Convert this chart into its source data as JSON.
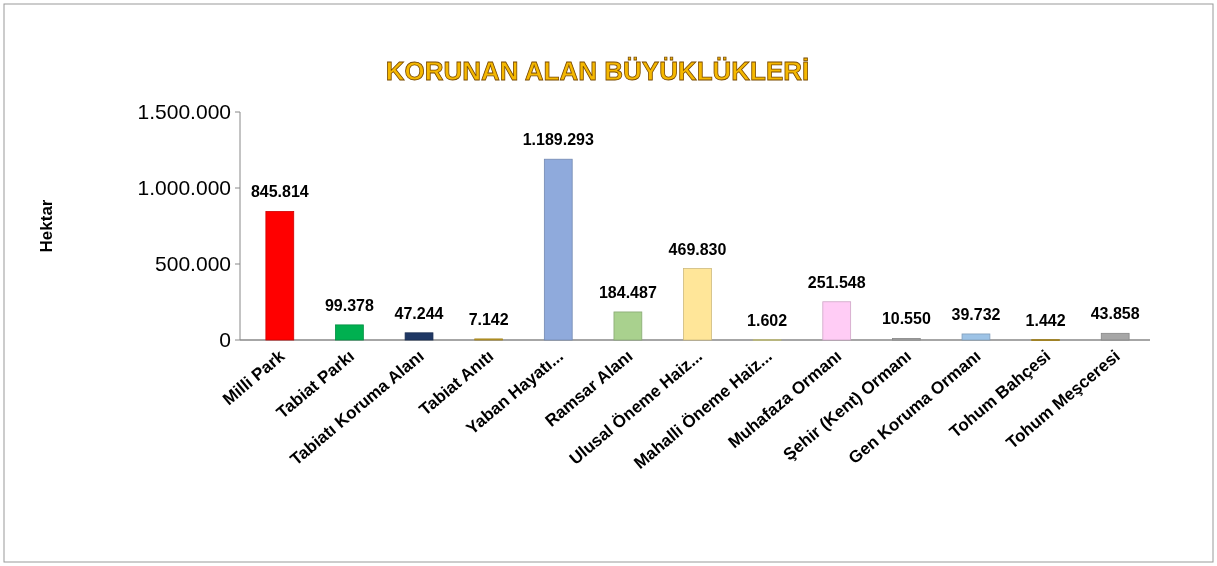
{
  "chart_data": {
    "type": "bar",
    "title": "KORUNAN ALAN BÜYÜKLÜKLERİ",
    "ylabel": "Hektar",
    "categories": [
      "Milli Park",
      "Tabiat Parkı",
      "Tabiatı Koruma Alanı",
      "Tabiat Anıtı",
      "Yaban Hayatı...",
      "Ramsar Alanı",
      "Ulusal Öneme Haiz...",
      "Mahalli Öneme Haiz...",
      "Muhafaza Ormanı",
      "Şehir (Kent) Ormanı",
      "Gen Koruma Ormanı",
      "Tohum Bahçesi",
      "Tohum  Meşceresi"
    ],
    "values": [
      845814,
      99378,
      47244,
      7142,
      1189293,
      184487,
      469830,
      1602,
      251548,
      10550,
      39732,
      1442,
      43858
    ],
    "value_labels": [
      "845.814",
      "99.378",
      "47.244",
      "7.142",
      "1.189.293",
      "184.487",
      "469.830",
      "1.602",
      "251.548",
      "10.550",
      "39.732",
      "1.442",
      "43.858"
    ],
    "colors": [
      "#ff0000",
      "#00b050",
      "#1f3864",
      "#c9a227",
      "#8faadc",
      "#a9d18e",
      "#ffe699",
      "#e6e28a",
      "#ffccf5",
      "#a6a6a6",
      "#9dc3e6",
      "#bf9000",
      "#a6a6a6"
    ],
    "ylim": [
      0,
      1500000
    ],
    "yticks": [
      0,
      {
        "value": 500000,
        "label": "500.000"
      },
      {
        "value": 1000000,
        "label": "1.000.000"
      },
      {
        "value": 1500000,
        "label": "1.500.000"
      }
    ],
    "grid": false
  }
}
